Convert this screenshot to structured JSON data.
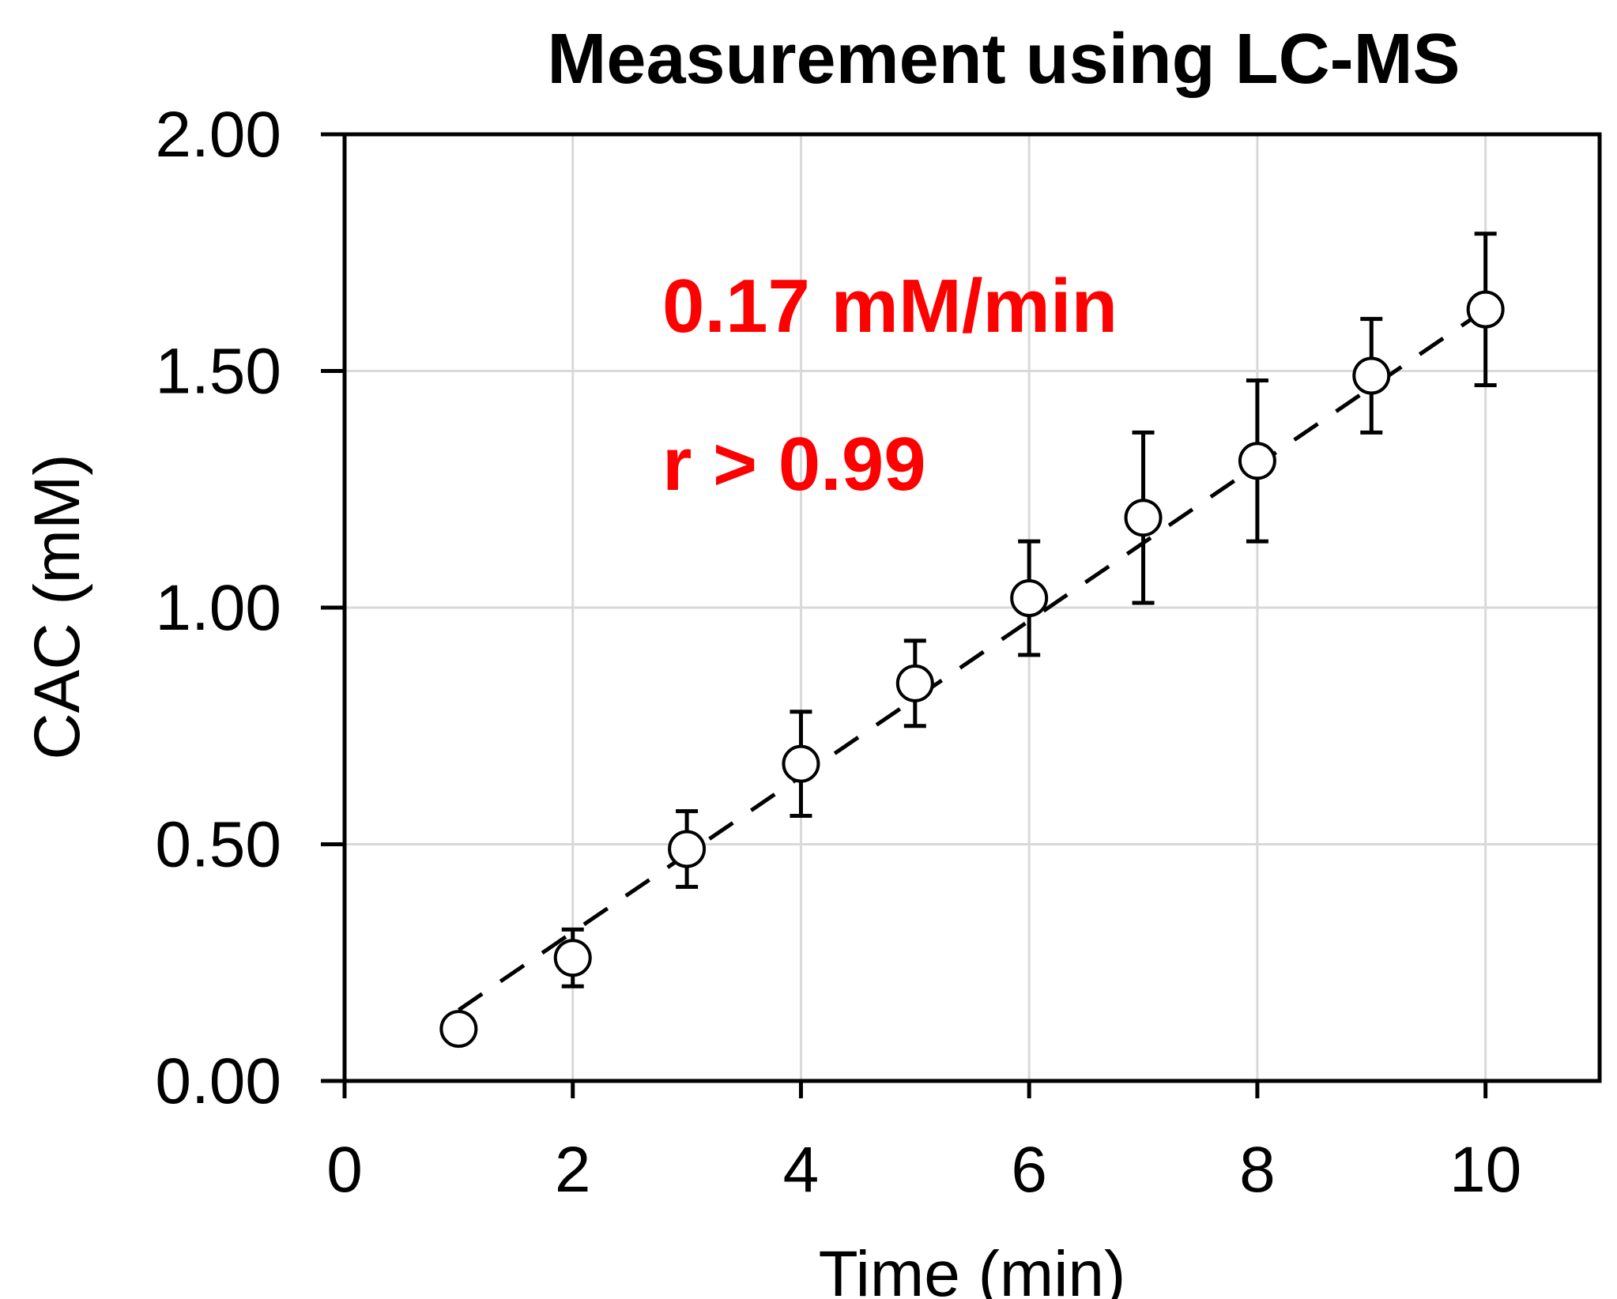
{
  "chart_data": {
    "type": "scatter",
    "title": "Measurement using LC-MS",
    "xlabel": "Time (min)",
    "ylabel": "CAC (mM)",
    "xlim": [
      0,
      11
    ],
    "ylim": [
      0,
      2
    ],
    "xticks": [
      0,
      2,
      4,
      6,
      8,
      10
    ],
    "xtick_labels": [
      "0",
      "2",
      "4",
      "6",
      "8",
      "10"
    ],
    "yticks": [
      0,
      0.5,
      1.0,
      1.5,
      2.0
    ],
    "ytick_labels": [
      "0.00",
      "0.50",
      "1.00",
      "1.50",
      "2.00"
    ],
    "grid": true,
    "series": [
      {
        "name": "CAC",
        "marker": "open-circle",
        "x": [
          1,
          2,
          3,
          4,
          5,
          6,
          7,
          8,
          9,
          10
        ],
        "y": [
          0.11,
          0.26,
          0.49,
          0.67,
          0.84,
          1.02,
          1.19,
          1.31,
          1.49,
          1.63
        ],
        "error": [
          0.0,
          0.06,
          0.08,
          0.11,
          0.09,
          0.12,
          0.18,
          0.17,
          0.12,
          0.16
        ]
      }
    ],
    "fit_line": {
      "style": "dashed",
      "x": [
        1,
        10
      ],
      "y": [
        0.15,
        1.63
      ]
    },
    "annotations": [
      {
        "text": "0.17 mM/min",
        "color": "#ff0000"
      },
      {
        "text": "r > 0.99",
        "color": "#ff0000"
      }
    ]
  }
}
